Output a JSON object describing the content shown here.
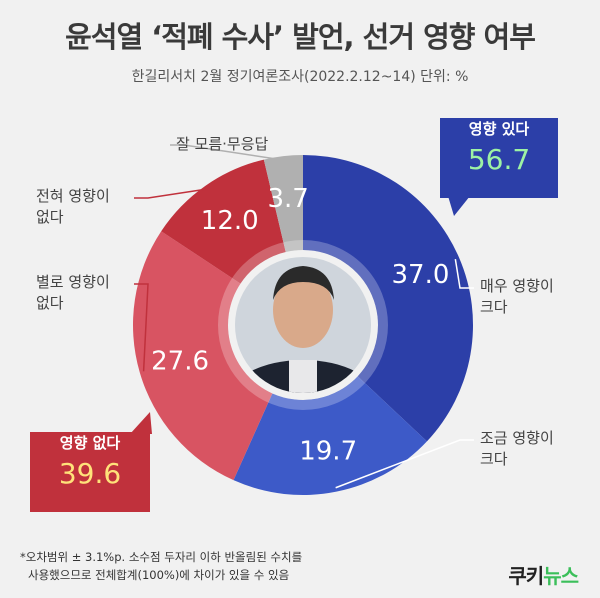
{
  "title": "윤석열 ‘적폐 수사’ 발언, 선거 영향 여부",
  "subtitle": "한길리서치 2월 정기여론조사(2022.2.12~14) 단위: %",
  "chart_data": {
    "type": "pie",
    "categories": [
      "매우 영향이 크다",
      "조금 영향이 크다",
      "별로 영향이 없다",
      "전혀 영향이 없다",
      "잘 모름·무응답"
    ],
    "values": [
      37.0,
      19.7,
      27.6,
      12.0,
      3.7
    ],
    "value_labels": [
      "37.0",
      "19.7",
      "27.6",
      "12.0",
      "3.7"
    ],
    "colors": [
      "#2c3fa8",
      "#3d5ac8",
      "#d85462",
      "#c0313c",
      "#b0b0b0"
    ]
  },
  "labels": {
    "very_large_1": "매우 영향이",
    "very_large_2": "크다",
    "somewhat_large_1": "조금 영향이",
    "somewhat_large_2": "크다",
    "not_much_1": "별로 영향이",
    "not_much_2": "없다",
    "none_1": "전혀 영향이",
    "none_2": "없다",
    "unknown": "잘 모름·무응답"
  },
  "callouts": {
    "yes_label": "영향 있다",
    "yes_value": "56.7",
    "no_label": "영향 없다",
    "no_value": "39.6"
  },
  "footnote": {
    "line1": "*오차범위 ± 3.1%p. 소수점 두자리 이하 반올림된 수치를",
    "line2": "사용했으므로 전체합계(100%)에 차이가 있을 수 있음"
  },
  "logo": {
    "part1": "쿠키",
    "part2": "뉴스"
  }
}
